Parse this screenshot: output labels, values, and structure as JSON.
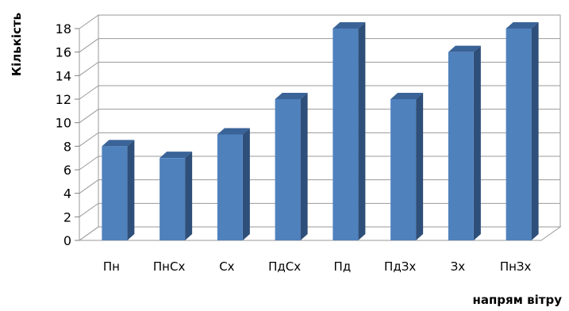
{
  "chart_data": {
    "type": "bar",
    "title": "",
    "xlabel": "напрям вітру",
    "ylabel": "Кількість",
    "categories": [
      "Пн",
      "ПнСх",
      "Сх",
      "ПдСх",
      "Пд",
      "ПдЗх",
      "Зх",
      "ПнЗх"
    ],
    "values": [
      8,
      7,
      9,
      12,
      18,
      12,
      16,
      18
    ],
    "ylim": [
      0,
      18
    ],
    "yticks": [
      "0",
      "2",
      "4",
      "6",
      "8",
      "10",
      "12",
      "14",
      "16",
      "18"
    ],
    "grid": true,
    "legend": "none",
    "style": "3d-column",
    "colors": {
      "bar_front": "#4F81BD",
      "bar_side": "#2E4F79",
      "bar_top": "#3A6398",
      "grid": "#9a9a9a",
      "wall": "#ffffff"
    }
  }
}
